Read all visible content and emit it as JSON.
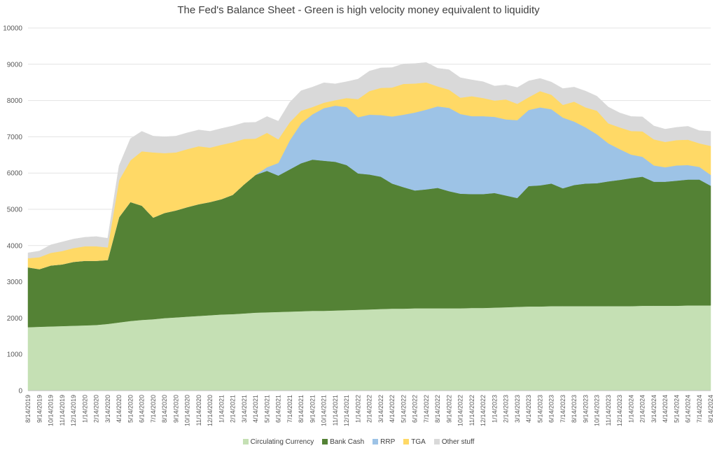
{
  "chart_data": {
    "type": "area",
    "stacked": true,
    "title": "The Fed's Balance Sheet - Green is high velocity money equivalent to liquidity",
    "xlabel": "",
    "ylabel": "",
    "ylim": [
      0,
      10000
    ],
    "yticks": [
      0,
      1000,
      2000,
      3000,
      4000,
      5000,
      6000,
      7000,
      8000,
      9000,
      10000
    ],
    "grid": true,
    "legend_position": "bottom",
    "categories": [
      "8/14/2019",
      "9/14/2019",
      "10/14/2019",
      "11/14/2019",
      "12/14/2019",
      "1/14/2020",
      "2/14/2020",
      "3/14/2020",
      "4/14/2020",
      "5/14/2020",
      "6/14/2020",
      "7/14/2020",
      "8/14/2020",
      "9/14/2020",
      "10/14/2020",
      "11/14/2020",
      "12/14/2020",
      "1/14/2021",
      "2/14/2021",
      "3/14/2021",
      "4/14/2021",
      "5/14/2021",
      "6/14/2021",
      "7/14/2021",
      "8/14/2021",
      "9/14/2021",
      "10/14/2021",
      "11/14/2021",
      "12/14/2021",
      "1/14/2022",
      "2/14/2022",
      "3/14/2022",
      "4/14/2022",
      "5/14/2022",
      "6/14/2022",
      "7/14/2022",
      "8/14/2022",
      "9/14/2022",
      "10/14/2022",
      "11/14/2022",
      "12/14/2022",
      "1/14/2023",
      "2/14/2023",
      "3/14/2023",
      "4/14/2023",
      "5/14/2023",
      "6/14/2023",
      "7/14/2023",
      "8/14/2023",
      "9/14/2023",
      "10/14/2023",
      "11/14/2023",
      "12/14/2023",
      "1/14/2024",
      "2/14/2024",
      "3/14/2024",
      "4/14/2024",
      "5/14/2024",
      "6/14/2024",
      "7/14/2024",
      "8/14/2024"
    ],
    "series": [
      {
        "name": "Circulating Currency",
        "color": "#c5e0b4",
        "values": [
          1750,
          1760,
          1770,
          1780,
          1790,
          1800,
          1810,
          1840,
          1880,
          1920,
          1950,
          1970,
          2000,
          2020,
          2040,
          2060,
          2080,
          2100,
          2110,
          2130,
          2150,
          2160,
          2170,
          2180,
          2190,
          2200,
          2200,
          2210,
          2220,
          2230,
          2240,
          2250,
          2260,
          2260,
          2270,
          2270,
          2270,
          2270,
          2270,
          2280,
          2280,
          2290,
          2300,
          2310,
          2320,
          2320,
          2330,
          2330,
          2330,
          2330,
          2330,
          2330,
          2330,
          2330,
          2340,
          2340,
          2340,
          2340,
          2350,
          2350,
          2350
        ]
      },
      {
        "name": "Bank Cash",
        "color": "#548235",
        "values": [
          1650,
          1590,
          1680,
          1700,
          1760,
          1780,
          1770,
          1760,
          2900,
          3280,
          3150,
          2800,
          2900,
          2950,
          3020,
          3080,
          3120,
          3180,
          3290,
          3560,
          3800,
          3900,
          3760,
          3920,
          4080,
          4170,
          4140,
          4100,
          4000,
          3760,
          3720,
          3650,
          3450,
          3350,
          3250,
          3280,
          3320,
          3230,
          3160,
          3140,
          3140,
          3160,
          3080,
          3000,
          3320,
          3340,
          3380,
          3250,
          3340,
          3380,
          3390,
          3440,
          3480,
          3530,
          3560,
          3420,
          3420,
          3450,
          3470,
          3470,
          3300
        ]
      },
      {
        "name": "RRP",
        "color": "#9dc3e6",
        "values": [
          0,
          0,
          0,
          0,
          0,
          0,
          0,
          0,
          0,
          0,
          0,
          0,
          0,
          0,
          0,
          0,
          0,
          0,
          0,
          0,
          0,
          100,
          350,
          800,
          1100,
          1250,
          1450,
          1550,
          1600,
          1550,
          1650,
          1700,
          1850,
          2000,
          2150,
          2200,
          2250,
          2300,
          2200,
          2150,
          2150,
          2100,
          2100,
          2150,
          2100,
          2150,
          2050,
          1950,
          1750,
          1550,
          1350,
          1050,
          850,
          650,
          550,
          450,
          400,
          420,
          400,
          350,
          300
        ]
      },
      {
        "name": "TGA",
        "color": "#ffd966",
        "values": [
          250,
          330,
          350,
          370,
          380,
          400,
          400,
          350,
          1020,
          1150,
          1500,
          1800,
          1650,
          1600,
          1600,
          1600,
          1500,
          1500,
          1450,
          1250,
          1000,
          950,
          650,
          500,
          350,
          200,
          150,
          150,
          250,
          500,
          650,
          750,
          800,
          850,
          800,
          750,
          550,
          500,
          450,
          550,
          500,
          450,
          550,
          450,
          350,
          450,
          400,
          350,
          550,
          550,
          650,
          550,
          600,
          650,
          700,
          720,
          700,
          700,
          700,
          650,
          800
        ]
      },
      {
        "name": "Other stuff",
        "color": "#d9d9d9",
        "values": [
          150,
          170,
          220,
          250,
          250,
          250,
          270,
          250,
          400,
          600,
          550,
          450,
          450,
          450,
          450,
          450,
          450,
          450,
          450,
          450,
          450,
          450,
          500,
          550,
          550,
          550,
          550,
          450,
          450,
          550,
          550,
          550,
          550,
          550,
          550,
          550,
          500,
          550,
          550,
          450,
          450,
          400,
          400,
          450,
          450,
          350,
          350,
          450,
          400,
          450,
          400,
          450,
          400,
          400,
          400,
          370,
          350,
          350,
          370,
          350,
          400
        ]
      }
    ]
  }
}
